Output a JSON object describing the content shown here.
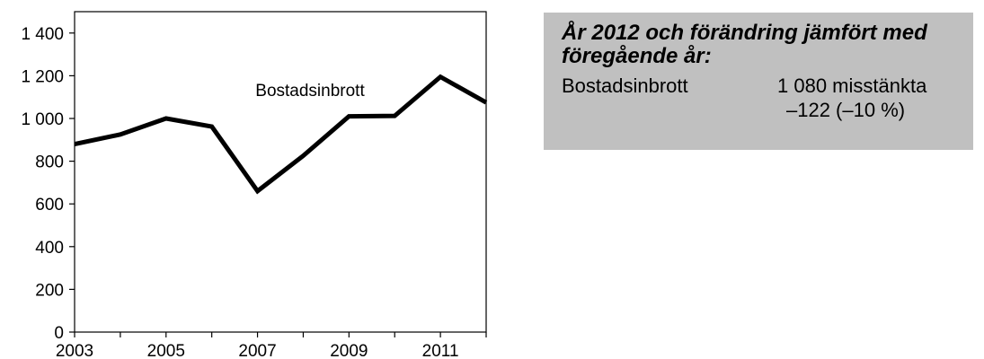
{
  "chart_data": {
    "type": "line",
    "x": [
      2003,
      2004,
      2005,
      2006,
      2007,
      2008,
      2009,
      2010,
      2011,
      2012
    ],
    "series": [
      {
        "name": "Bostadsinbrott",
        "values": [
          880,
          925,
          1000,
          962,
          660,
          825,
          1010,
          1012,
          1195,
          1075
        ]
      }
    ],
    "xticks": [
      "2003",
      "2005",
      "2007",
      "2009",
      "2011"
    ],
    "yticks": [
      "0",
      "200",
      "400",
      "600",
      "800",
      "1 000",
      "1 200",
      "1 400"
    ],
    "ylim": [
      0,
      1400
    ],
    "xlim": [
      2003,
      2012
    ],
    "grid": false,
    "line_color": "#000000"
  },
  "info_box": {
    "heading": "År 2012 och förändring jämfört med föregående år:",
    "label": "Bostadsinbrott",
    "value": "1 080 misstänkta",
    "change": "–122 (–10 %)",
    "background": "#c0c0c0"
  }
}
